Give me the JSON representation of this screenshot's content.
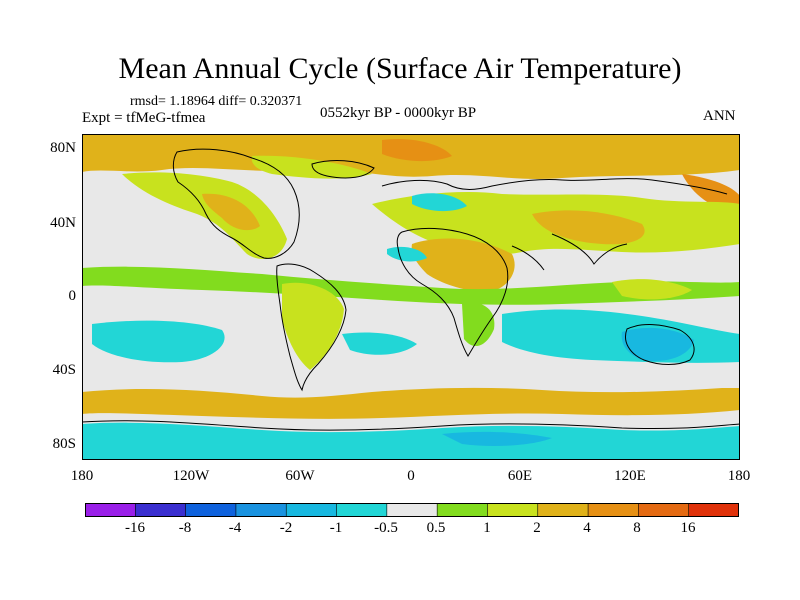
{
  "title": "Mean Annual Cycle (Surface Air Temperature)",
  "stats": "rmsd= 1.18964 diff= 0.320371",
  "experiment": "Expt = tfMeG-tfmea",
  "period": "0552kyr BP - 0000kyr BP",
  "season": "ANN",
  "lat_labels": [
    "80N",
    "40N",
    "0",
    "40S",
    "80S"
  ],
  "lon_labels": [
    "180",
    "120W",
    "60W",
    "0",
    "60E",
    "120E",
    "180"
  ],
  "colorbar": {
    "labels": [
      "-16",
      "-8",
      "-4",
      "-2",
      "-1",
      "-0.5",
      "0.5",
      "1",
      "2",
      "4",
      "8",
      "16"
    ],
    "colors": [
      "#9a1fe8",
      "#3b2fd0",
      "#0f62dd",
      "#1a93e0",
      "#18b8e0",
      "#22d6d6",
      "#e8e8e8",
      "#82dc1e",
      "#c8e21e",
      "#e0b21a",
      "#e69014",
      "#e46a12",
      "#e0320a"
    ]
  },
  "map_colors": {
    "neutral": "#e8e8e8",
    "warm1": "#82dc1e",
    "warm2": "#c8e21e",
    "warm3": "#e0b21a",
    "warm4": "#e69014",
    "cool1": "#22d6d6",
    "cool2": "#18b8e0",
    "coast": "#000000"
  }
}
